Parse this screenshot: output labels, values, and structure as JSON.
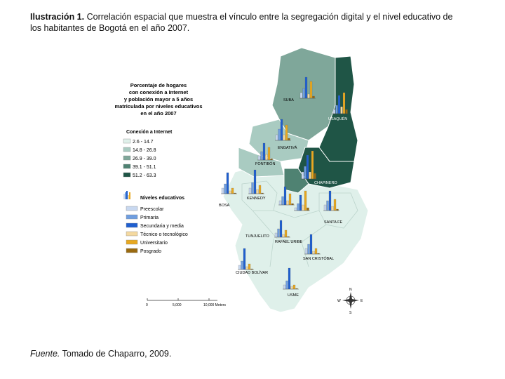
{
  "caption": {
    "label": "Ilustración 1.",
    "text": "Correlación espacial que muestra el vínculo entre la segregación digital y el nivel educativo de los habitantes de Bogotá en el año 2007."
  },
  "source": {
    "label": "Fuente.",
    "text": "Tomado de Chaparro, 2009."
  },
  "legend": {
    "title_lines": [
      "Porcentaje de hogares",
      "con conexión a Internet",
      "y población mayor a 5 años",
      "matriculada por niveles educativos",
      "en el año 2007"
    ],
    "connection_title": "Conexión a Internet",
    "connection_classes": [
      {
        "label": "2.6 - 14.7",
        "color": "#dff0ea"
      },
      {
        "label": "14.8 - 26.8",
        "color": "#a9cbc1"
      },
      {
        "label": "26.9 - 39.0",
        "color": "#7fa79a"
      },
      {
        "label": "39.1 - 51.1",
        "color": "#4f8272"
      },
      {
        "label": "51.2 - 63.3",
        "color": "#1f5546"
      }
    ],
    "education_title": "Niveles educativos",
    "education_levels": [
      {
        "label": "Preescolar",
        "color": "#c8d8f0"
      },
      {
        "label": "Primaria",
        "color": "#6f9ee0"
      },
      {
        "label": "Secundaria y media",
        "color": "#1f5fd0"
      },
      {
        "label": "Técnico o tecnológico",
        "color": "#f4d9a0"
      },
      {
        "label": "Universitario",
        "color": "#e8a820"
      },
      {
        "label": "Posgrado",
        "color": "#9a6a10"
      }
    ]
  },
  "localities": [
    "SUBA",
    "USAQUÉN",
    "ENGATIVÁ",
    "FONTIBÓN",
    "CHAPINERO",
    "BOSA",
    "KENNEDY",
    "SANTA FE",
    "TUNJUELITO",
    "RAFAEL URIBE",
    "SAN CRISTÓBAL",
    "CIUDAD BOLÍVAR",
    "USME"
  ],
  "scale": {
    "ticks": [
      "0",
      "5,000",
      "10,000 Meters"
    ]
  }
}
